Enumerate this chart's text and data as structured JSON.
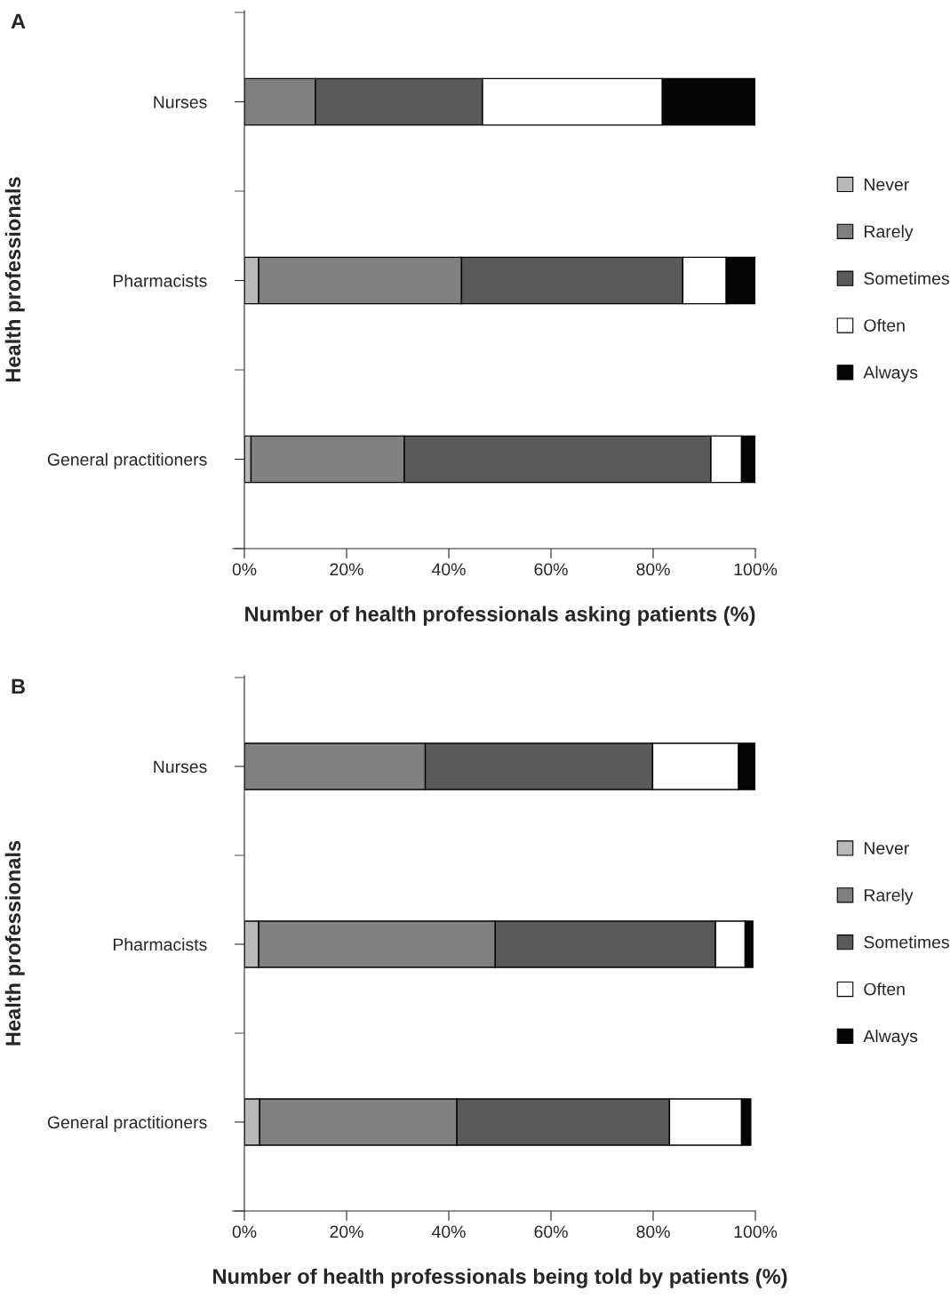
{
  "chart_data": [
    {
      "type": "bar",
      "title": "A",
      "orientation": "horizontal",
      "stacked": true,
      "xlabel": "Number of health professionals asking patients (%)",
      "ylabel": "Health professionals",
      "categories": [
        "Nurses",
        "Pharmacists",
        "General practitioners"
      ],
      "xlim": [
        0,
        100
      ],
      "xticks": [
        {
          "value": 0,
          "label": "0%"
        },
        {
          "value": 20,
          "label": "20%"
        },
        {
          "value": 40,
          "label": "40%"
        },
        {
          "value": 60,
          "label": "60%"
        },
        {
          "value": 80,
          "label": "80%"
        },
        {
          "value": 100,
          "label": "100%"
        }
      ],
      "legend": "right",
      "grid": false,
      "series": [
        {
          "name": "Never",
          "color": "#b8b8b8",
          "values": [
            0,
            2.8,
            1.3
          ]
        },
        {
          "name": "Rarely",
          "color": "#808080",
          "values": [
            13.9,
            39.7,
            30.0
          ]
        },
        {
          "name": "Sometimes",
          "color": "#5a5a5a",
          "values": [
            32.7,
            43.3,
            60.0
          ]
        },
        {
          "name": "Often",
          "color": "#ffffff",
          "values": [
            35.2,
            8.5,
            6.0
          ]
        },
        {
          "name": "Always",
          "color": "#050505",
          "values": [
            18.1,
            5.7,
            2.7
          ]
        }
      ]
    },
    {
      "type": "bar",
      "title": "B",
      "orientation": "horizontal",
      "stacked": true,
      "xlabel": "Number of health professionals being told by patients (%)",
      "ylabel": "Health professionals",
      "categories": [
        "Nurses",
        "Pharmacists",
        "General practitioners"
      ],
      "xlim": [
        0,
        100
      ],
      "xticks": [
        {
          "value": 0,
          "label": "0%"
        },
        {
          "value": 20,
          "label": "20%"
        },
        {
          "value": 40,
          "label": "40%"
        },
        {
          "value": 60,
          "label": "60%"
        },
        {
          "value": 80,
          "label": "80%"
        },
        {
          "value": 100,
          "label": "100%"
        }
      ],
      "legend": "right",
      "grid": false,
      "series": [
        {
          "name": "Never",
          "color": "#b8b8b8",
          "values": [
            0,
            2.8,
            3.0
          ]
        },
        {
          "name": "Rarely",
          "color": "#808080",
          "values": [
            35.4,
            46.3,
            38.6
          ]
        },
        {
          "name": "Sometimes",
          "color": "#5a5a5a",
          "values": [
            44.5,
            43.1,
            41.6
          ]
        },
        {
          "name": "Often",
          "color": "#ffffff",
          "values": [
            16.8,
            5.8,
            14.1
          ]
        },
        {
          "name": "Always",
          "color": "#050505",
          "values": [
            3.2,
            1.5,
            1.8
          ]
        }
      ]
    }
  ]
}
